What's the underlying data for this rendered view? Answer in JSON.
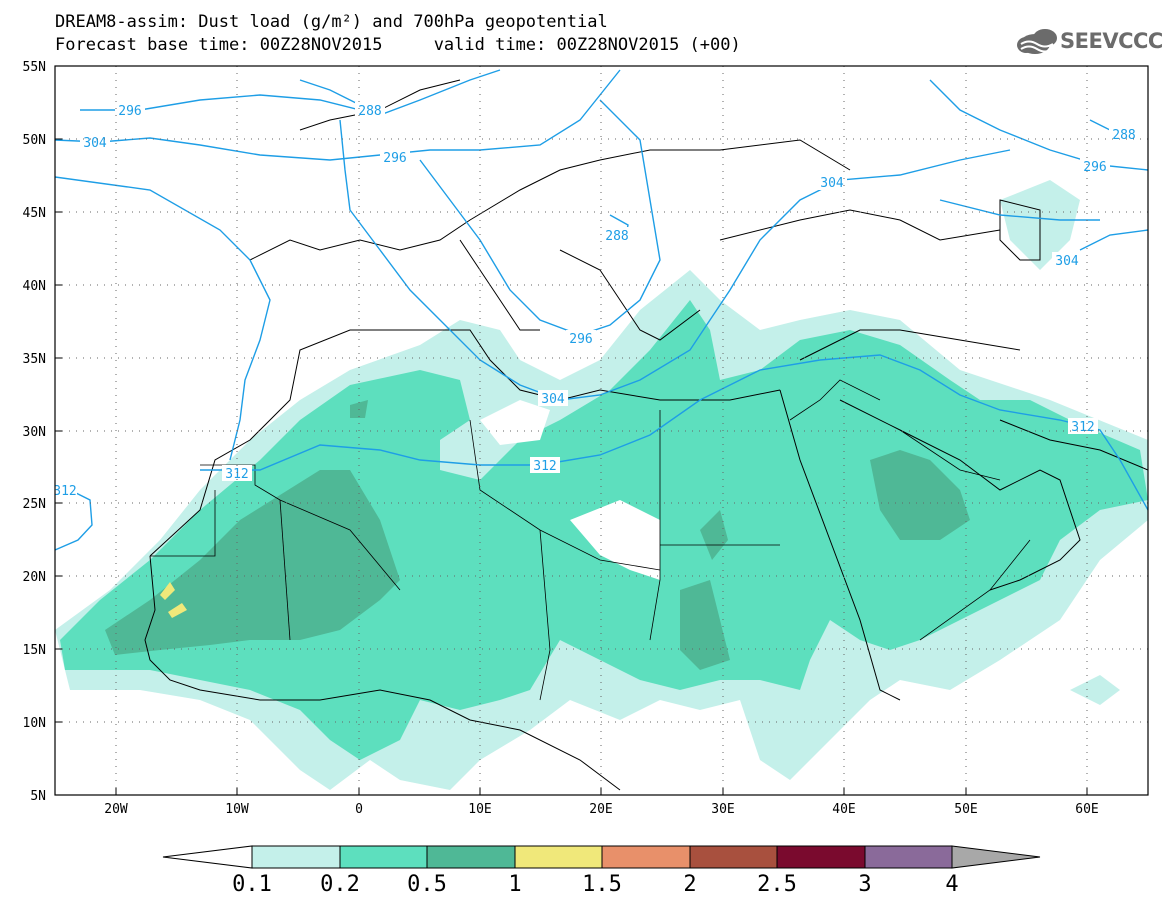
{
  "title_line1": "DREAM8-assim: Dust load (g/m²) and 700hPa geopotential",
  "title_line2": "Forecast base time: 00Z28NOV2015     valid time: 00Z28NOV2015 (+00)",
  "logo_text": "SEEVCCC",
  "lat_labels": [
    "55N",
    "50N",
    "45N",
    "40N",
    "35N",
    "30N",
    "25N",
    "20N",
    "15N",
    "10N",
    "5N"
  ],
  "lon_labels": [
    "20W",
    "10W",
    "0",
    "10E",
    "20E",
    "30E",
    "40E",
    "50E",
    "60E"
  ],
  "contour_labels": [
    "296",
    "304",
    "288",
    "296",
    "288",
    "296",
    "304",
    "296",
    "288",
    "304",
    "304",
    "312",
    "312",
    "312",
    "312"
  ],
  "colorbar": {
    "labels": [
      "0.1",
      "0.2",
      "0.5",
      "1",
      "1.5",
      "2",
      "2.5",
      "3",
      "4"
    ],
    "colors": [
      "#c4f0ea",
      "#5ddfbe",
      "#4fb896",
      "#f0e87a",
      "#e8906a",
      "#a8503e",
      "#7a0a2e",
      "#8a6a9a"
    ],
    "under_color": "#ffffff",
    "over_color": "#a8a8a8"
  }
}
